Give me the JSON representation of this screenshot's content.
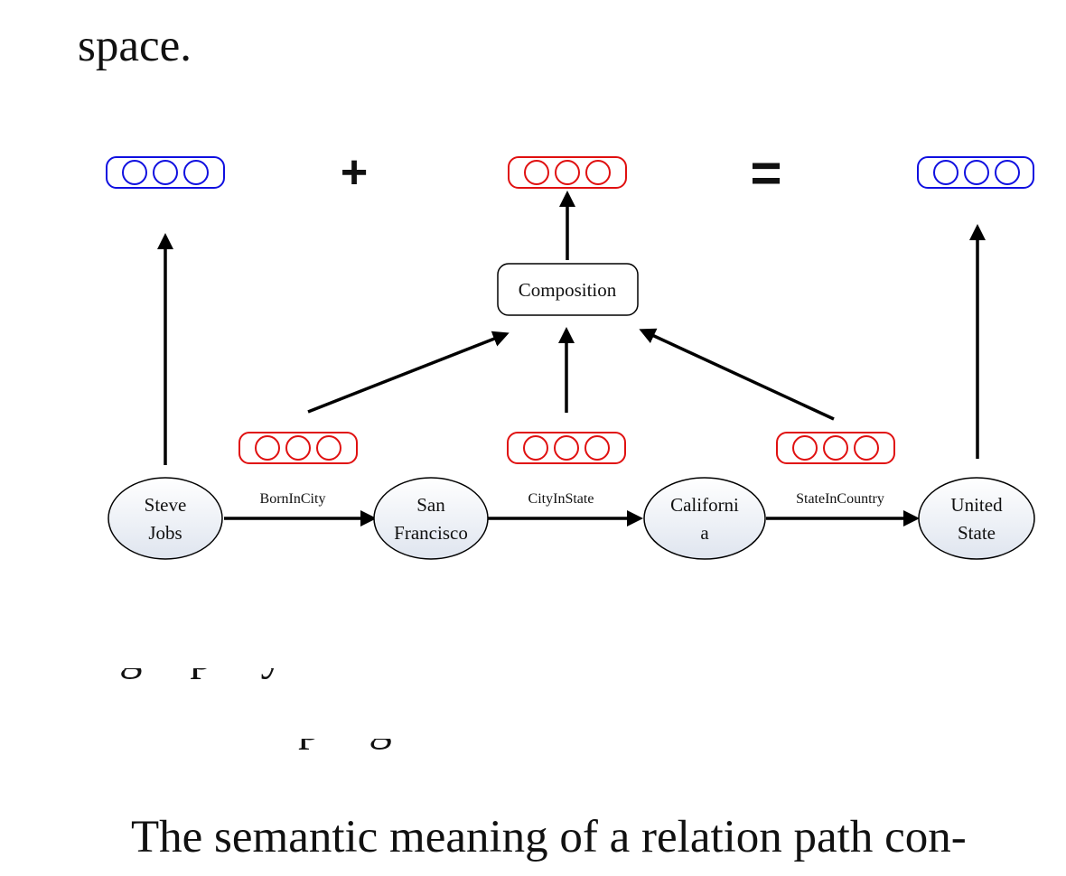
{
  "paper": {
    "top_text": "space.",
    "clipped_text_1": "g   p  y",
    "clipped_text_2": "p   g",
    "bottom_text": "The semantic meaning of a relation path con-"
  },
  "figure": {
    "operators": {
      "plus": "+",
      "equals": "="
    },
    "composition_label": "Composition",
    "entities": [
      {
        "line1": "Steve",
        "line2": "Jobs"
      },
      {
        "line1": "San",
        "line2": "Francisco"
      },
      {
        "line1": "Californi",
        "line2": "a"
      },
      {
        "line1": "United",
        "line2": "State"
      }
    ],
    "relations": [
      {
        "label": "BornInCity"
      },
      {
        "label": "CityInState"
      },
      {
        "label": "StateInCountry"
      }
    ],
    "colors": {
      "entity_vector": "#1010e0",
      "relation_vector": "#e01010",
      "arrow": "#000000",
      "node_fill_top": "#ffffff",
      "node_fill_bottom": "#dfe5ef"
    }
  }
}
